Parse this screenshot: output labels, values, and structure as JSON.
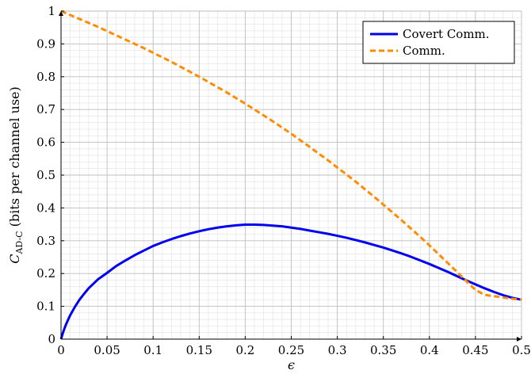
{
  "chart_data": {
    "type": "line",
    "title": "",
    "xlabel": "ϵ",
    "ylabel": {
      "symbol": "C",
      "subscript": "AD-C",
      "rest": " (bits per channel use)"
    },
    "xlim": [
      0,
      0.5
    ],
    "ylim": [
      0,
      1
    ],
    "x_ticks": [
      0,
      0.05,
      0.1,
      0.15,
      0.2,
      0.25,
      0.3,
      0.35,
      0.4,
      0.45,
      0.5
    ],
    "x_tick_labels": [
      "0",
      "0.05",
      "0.1",
      "0.15",
      "0.2",
      "0.25",
      "0.3",
      "0.35",
      "0.4",
      "0.45",
      "0.5"
    ],
    "y_ticks": [
      0,
      0.1,
      0.2,
      0.3,
      0.4,
      0.5,
      0.6,
      0.7,
      0.8,
      0.9,
      1
    ],
    "y_tick_labels": [
      "0",
      "0.1",
      "0.2",
      "0.3",
      "0.4",
      "0.5",
      "0.6",
      "0.7",
      "0.8",
      "0.9",
      "1"
    ],
    "grid": true,
    "minor_grid": true,
    "legend_position": "top-right",
    "x": [
      0,
      0.0025,
      0.005,
      0.0075,
      0.01,
      0.015,
      0.02,
      0.025,
      0.03,
      0.04,
      0.05,
      0.06,
      0.07,
      0.08,
      0.09,
      0.1,
      0.11,
      0.12,
      0.13,
      0.14,
      0.15,
      0.16,
      0.17,
      0.18,
      0.19,
      0.2,
      0.21,
      0.22,
      0.23,
      0.24,
      0.25,
      0.26,
      0.27,
      0.28,
      0.29,
      0.3,
      0.31,
      0.32,
      0.33,
      0.34,
      0.35,
      0.36,
      0.37,
      0.38,
      0.39,
      0.4,
      0.41,
      0.42,
      0.43,
      0.44,
      0.45,
      0.46,
      0.47,
      0.48,
      0.49,
      0.5
    ],
    "series": [
      {
        "name": "Covert Comm.",
        "color": "#0000ee",
        "dash": "solid",
        "values": [
          0,
          0.023,
          0.042,
          0.058,
          0.073,
          0.098,
          0.12,
          0.138,
          0.155,
          0.182,
          0.202,
          0.223,
          0.24,
          0.256,
          0.27,
          0.284,
          0.295,
          0.305,
          0.314,
          0.322,
          0.329,
          0.335,
          0.34,
          0.344,
          0.347,
          0.349,
          0.349,
          0.348,
          0.346,
          0.344,
          0.34,
          0.336,
          0.331,
          0.326,
          0.321,
          0.315,
          0.309,
          0.302,
          0.295,
          0.287,
          0.279,
          0.27,
          0.261,
          0.251,
          0.24,
          0.229,
          0.217,
          0.205,
          0.192,
          0.179,
          0.167,
          0.155,
          0.144,
          0.134,
          0.126,
          0.12
        ]
      },
      {
        "name": "Comm.",
        "color": "#ff8c00",
        "dash": "dashed",
        "values": [
          1,
          0.997,
          0.994,
          0.991,
          0.988,
          0.982,
          0.976,
          0.97,
          0.964,
          0.952,
          0.939,
          0.926,
          0.913,
          0.9,
          0.887,
          0.873,
          0.859,
          0.845,
          0.83,
          0.815,
          0.8,
          0.784,
          0.768,
          0.752,
          0.735,
          0.718,
          0.7,
          0.682,
          0.664,
          0.645,
          0.626,
          0.606,
          0.586,
          0.565,
          0.545,
          0.523,
          0.502,
          0.48,
          0.457,
          0.434,
          0.41,
          0.386,
          0.362,
          0.337,
          0.312,
          0.286,
          0.259,
          0.232,
          0.205,
          0.177,
          0.15,
          0.135,
          0.131,
          0.127,
          0.123,
          0.12
        ]
      }
    ]
  }
}
